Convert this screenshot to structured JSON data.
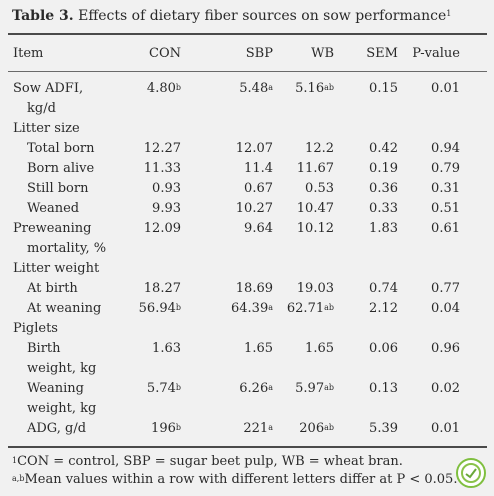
{
  "caption": {
    "label": "Table 3.",
    "text": "Effects of dietary fiber sources on sow performance",
    "footnote_mark": "1"
  },
  "header": {
    "item": "Item",
    "con": "CON",
    "sbp": "SBP",
    "wb": "WB",
    "sem": "SEM",
    "p": "P-value"
  },
  "rows": [
    {
      "label": "Sow ADFI,",
      "con": "4.80",
      "con_sup": "b",
      "sbp": "5.48",
      "sbp_sup": "a",
      "wb": "5.16",
      "wb_sup": "ab",
      "sem": "0.15",
      "p": "0.01"
    },
    {
      "label": "kg/d"
    },
    {
      "label": "Litter size"
    },
    {
      "label": "Total born",
      "con": "12.27",
      "sbp": "12.07",
      "wb": "12.2",
      "sem": "0.42",
      "p": "0.94"
    },
    {
      "label": "Born alive",
      "con": "11.33",
      "sbp": "11.4",
      "wb": "11.67",
      "sem": "0.19",
      "p": "0.79"
    },
    {
      "label": "Still born",
      "con": "0.93",
      "sbp": "0.67",
      "wb": "0.53",
      "sem": "0.36",
      "p": "0.31"
    },
    {
      "label": "Weaned",
      "con": "9.93",
      "sbp": "10.27",
      "wb": "10.47",
      "sem": "0.33",
      "p": "0.51"
    },
    {
      "label": "Preweaning",
      "con": "12.09",
      "sbp": "9.64",
      "wb": "10.12",
      "sem": "1.83",
      "p": "0.61"
    },
    {
      "label": "mortality, %"
    },
    {
      "label": "Litter weight"
    },
    {
      "label": "At birth",
      "con": "18.27",
      "sbp": "18.69",
      "wb": "19.03",
      "sem": "0.74",
      "p": "0.77"
    },
    {
      "label": "At weaning",
      "con": "56.94",
      "con_sup": "b",
      "sbp": "64.39",
      "sbp_sup": "a",
      "wb": "62.71",
      "wb_sup": "ab",
      "sem": "2.12",
      "p": "0.04"
    },
    {
      "label": "Piglets"
    },
    {
      "label": "Birth",
      "con": "1.63",
      "sbp": "1.65",
      "wb": "1.65",
      "sem": "0.06",
      "p": "0.96"
    },
    {
      "label": "weight, kg"
    },
    {
      "label": "Weaning",
      "con": "5.74",
      "con_sup": "b",
      "sbp": "6.26",
      "sbp_sup": "a",
      "wb": "5.97",
      "wb_sup": "ab",
      "sem": "0.13",
      "p": "0.02"
    },
    {
      "label": "weight, kg"
    },
    {
      "label": "ADG, g/d",
      "con": "196",
      "con_sup": "b",
      "sbp": "221",
      "sbp_sup": "a",
      "wb": "206",
      "wb_sup": "ab",
      "sem": "5.39",
      "p": "0.01"
    }
  ],
  "footnotes": [
    {
      "mark": "1",
      "text": "CON = control, SBP = sugar beet pulp, WB = wheat bran."
    },
    {
      "mark": "a,b",
      "text": "Mean values within a row with different letters differ at P < 0.05."
    }
  ]
}
